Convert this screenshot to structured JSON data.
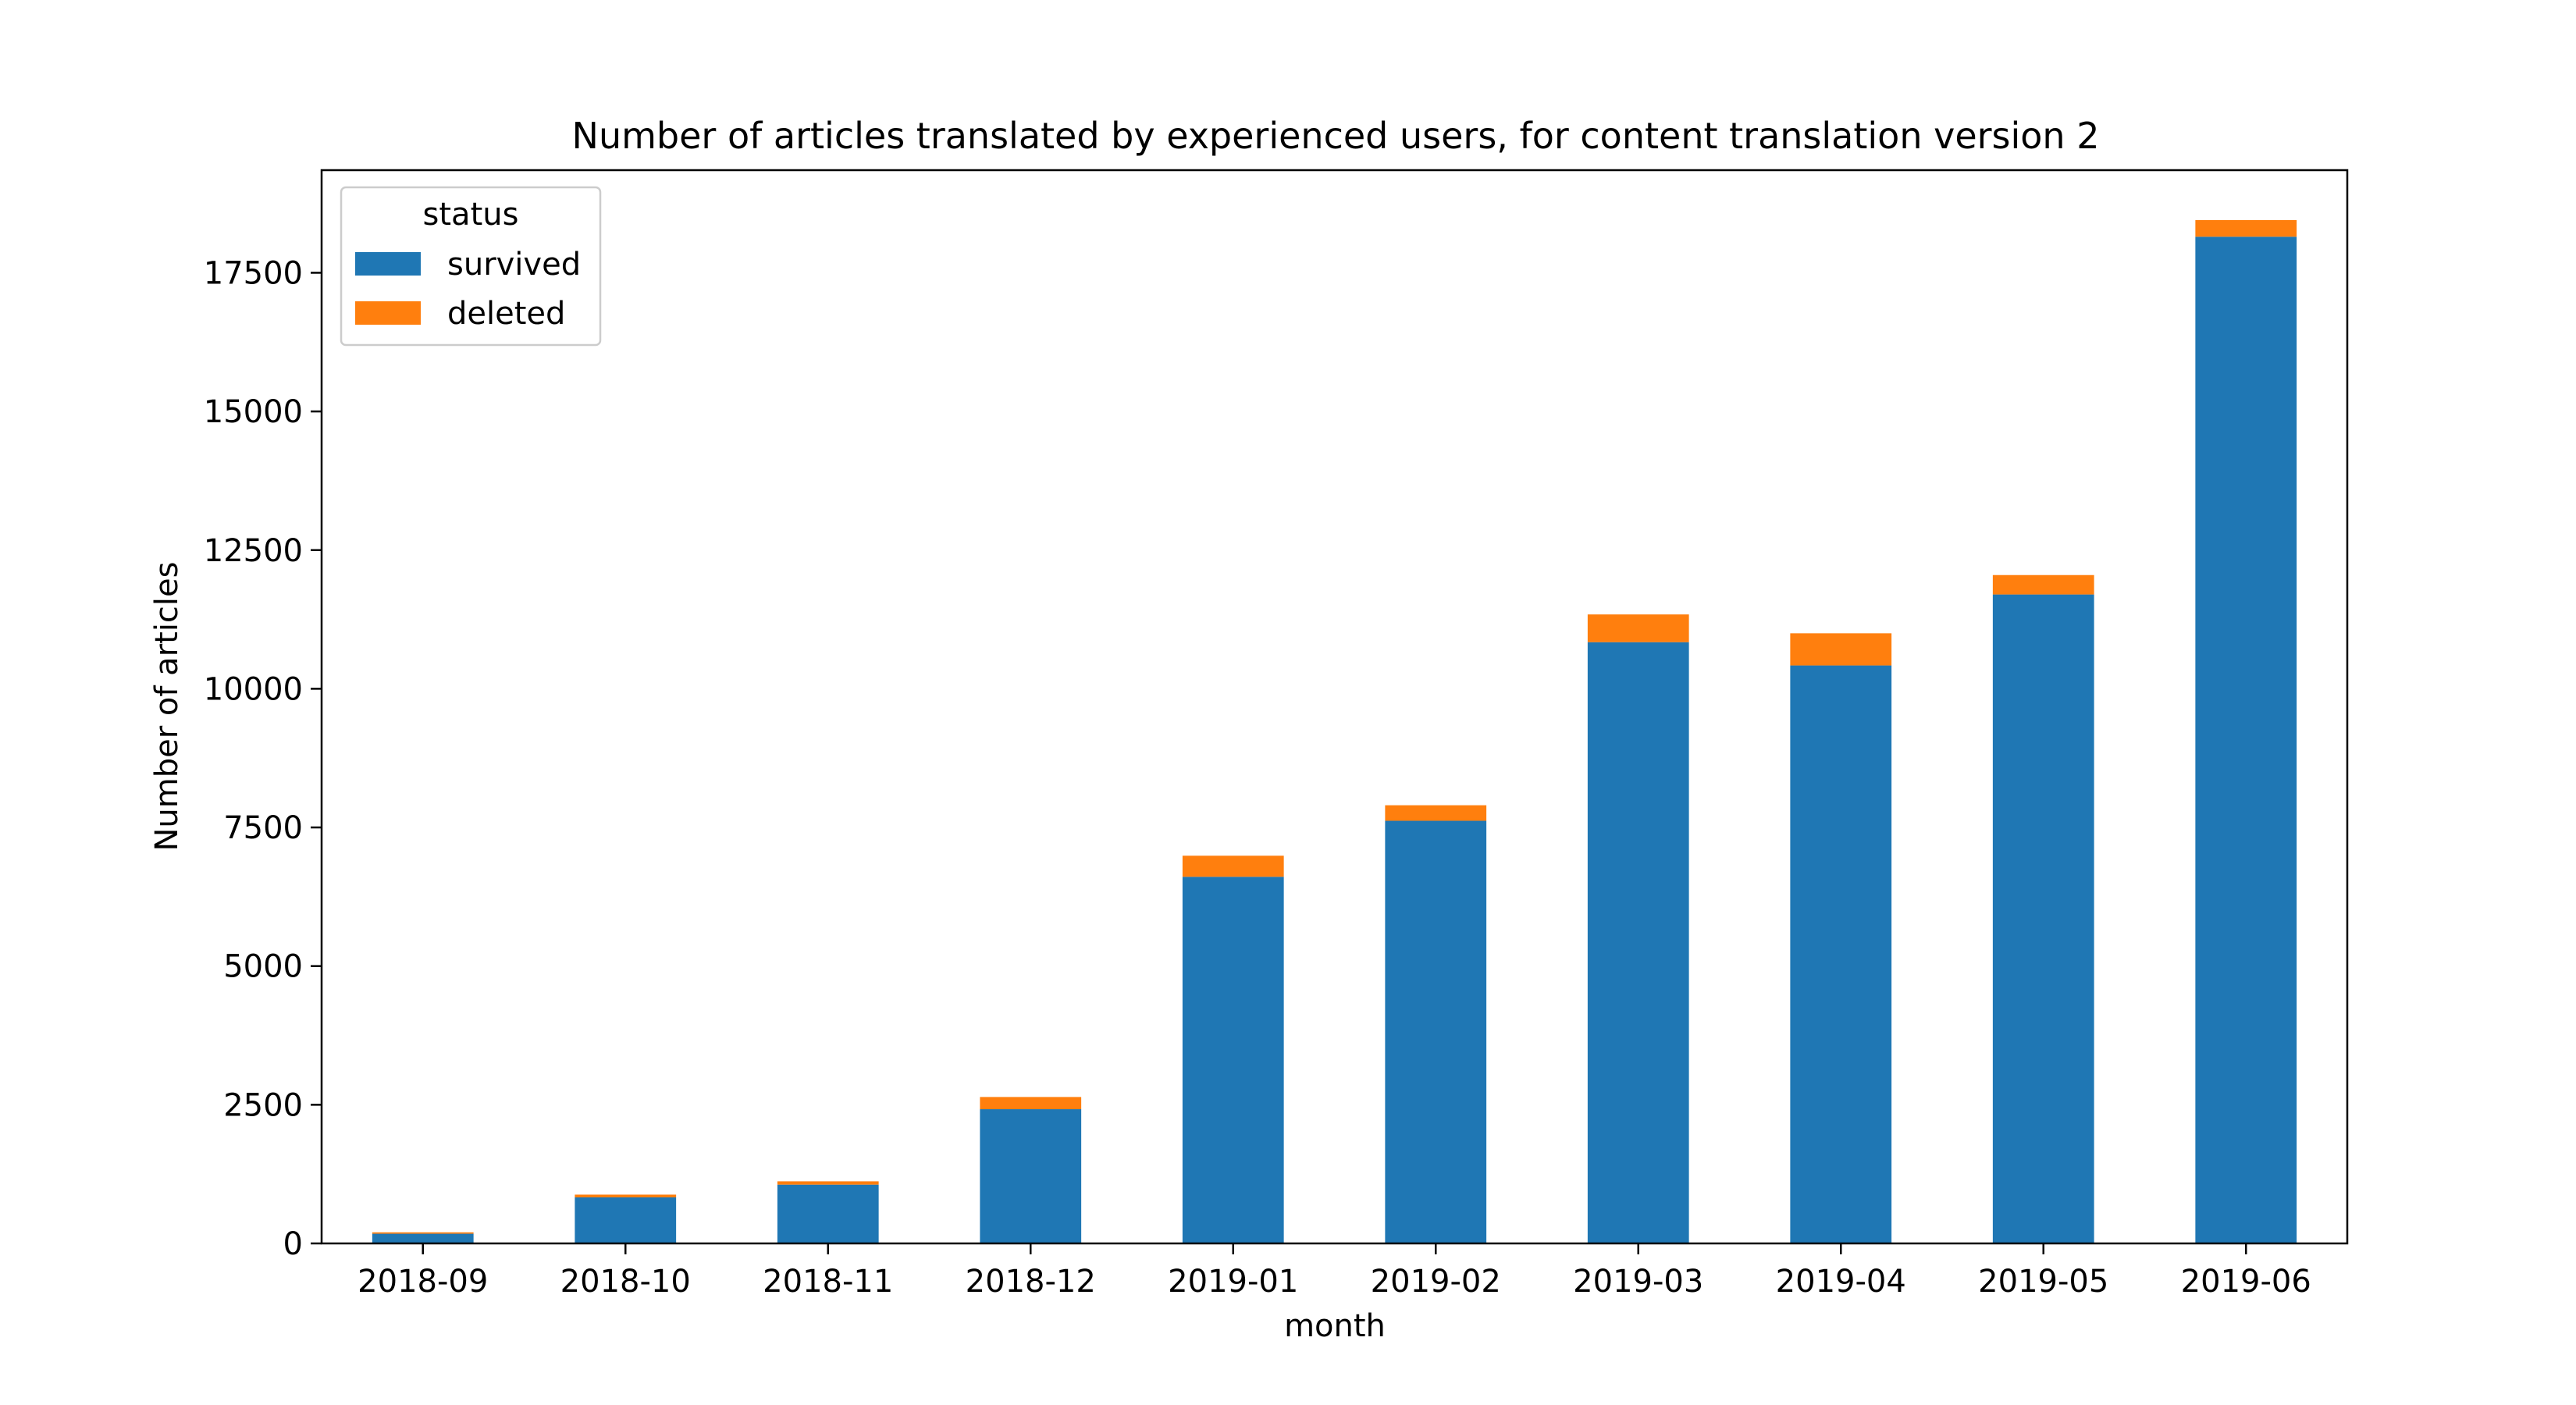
{
  "chart_data": {
    "type": "bar",
    "stacked": true,
    "title": "Number of articles translated by experienced users, for content translation version 2",
    "xlabel": "month",
    "ylabel": "Number of articles",
    "categories": [
      "2018-09",
      "2018-10",
      "2018-11",
      "2018-12",
      "2019-01",
      "2019-02",
      "2019-03",
      "2019-04",
      "2019-05",
      "2019-06"
    ],
    "series": [
      {
        "name": "survived",
        "color": "#1f77b4",
        "values": [
          175,
          830,
          1060,
          2420,
          6610,
          7620,
          10840,
          10420,
          11700,
          18150
        ]
      },
      {
        "name": "deleted",
        "color": "#ff7f0e",
        "values": [
          25,
          50,
          60,
          220,
          380,
          280,
          500,
          580,
          350,
          300
        ]
      }
    ],
    "ylim": [
      0,
      19350
    ],
    "yticks": [
      0,
      2500,
      5000,
      7500,
      10000,
      12500,
      15000,
      17500
    ],
    "legend": {
      "title": "status",
      "position": "top-left"
    },
    "grid": false
  }
}
